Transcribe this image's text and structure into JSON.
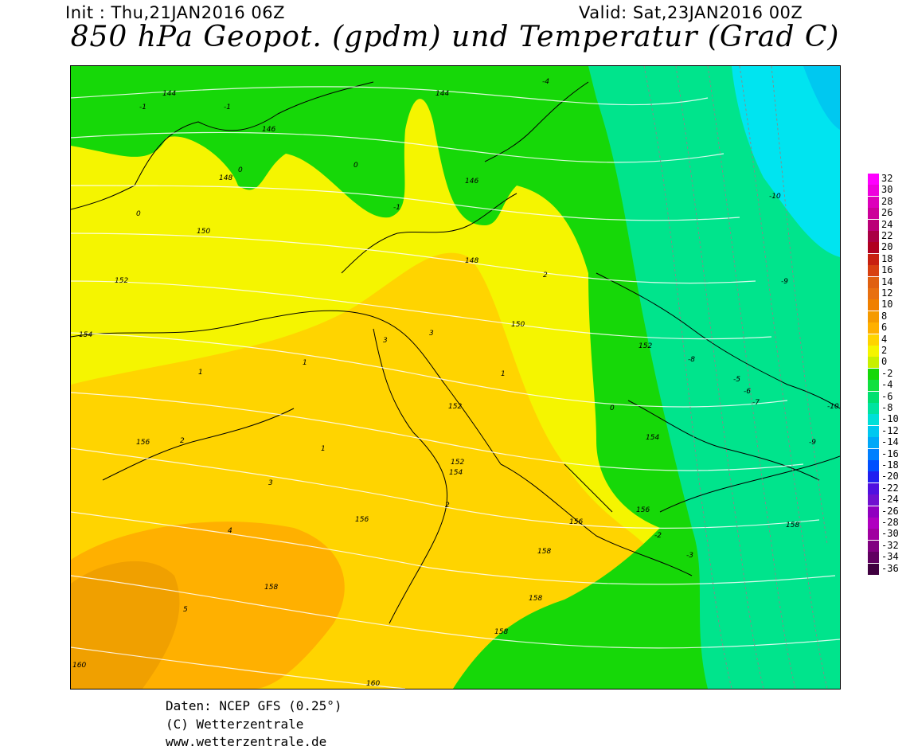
{
  "header": {
    "init": "Init : Thu,21JAN2016 06Z",
    "valid": "Valid: Sat,23JAN2016 00Z",
    "title": "850 hPa Geopot. (gpdm) und Temperatur (Grad C)"
  },
  "colors": {
    "yellow": "#f5f500",
    "light_orange": "#ffd400",
    "orange": "#ffb000",
    "green": "#16d808",
    "aqua_green": "#00e48c",
    "cyan": "#00e4f0"
  },
  "geopotential_labels": [
    "144",
    "144",
    "146",
    "146",
    "148",
    "148",
    "150",
    "150",
    "152",
    "152",
    "154",
    "154",
    "154",
    "156",
    "156",
    "156",
    "158",
    "158",
    "158",
    "158",
    "160",
    "160",
    "152",
    "158",
    "156",
    "152"
  ],
  "temperature_labels": [
    "-1",
    "-1",
    "-1",
    "0",
    "0",
    "0",
    "0",
    "1",
    "1",
    "1",
    "1",
    "2",
    "2",
    "2",
    "3",
    "3",
    "3",
    "4",
    "5",
    "-2",
    "-3",
    "-4",
    "-5",
    "-6",
    "-7",
    "-8",
    "-9",
    "-10",
    "-9",
    "-10"
  ],
  "legend": {
    "labels": [
      "32",
      "30",
      "28",
      "26",
      "24",
      "22",
      "20",
      "18",
      "16",
      "14",
      "12",
      "10",
      "8",
      "6",
      "4",
      "2",
      "0",
      "-2",
      "-4",
      "-6",
      "-8",
      "-10",
      "-12",
      "-14",
      "-16",
      "-18",
      "-20",
      "-22",
      "-24",
      "-26",
      "-28",
      "-30",
      "-32",
      "-34",
      "-36"
    ],
    "colors": [
      "#ff00ff",
      "#ee00dd",
      "#dd00bb",
      "#cc0099",
      "#bb0077",
      "#aa0044",
      "#b00020",
      "#c82010",
      "#d84010",
      "#e06010",
      "#e87010",
      "#f08000",
      "#f59a00",
      "#ffb000",
      "#ffd400",
      "#f5f500",
      "#c8f000",
      "#16d808",
      "#10e040",
      "#00e070",
      "#00e4a0",
      "#00e0d8",
      "#00c8f0",
      "#00a8f8",
      "#0080ff",
      "#0050ff",
      "#2020f0",
      "#5010e0",
      "#7010d0",
      "#9000c0",
      "#b000c0",
      "#a000a0",
      "#800080",
      "#600060",
      "#400040"
    ]
  },
  "footer": {
    "source": "Daten: NCEP GFS (0.25°)",
    "copyright": "(C) Wetterzentrale",
    "url": "www.wetterzentrale.de"
  }
}
